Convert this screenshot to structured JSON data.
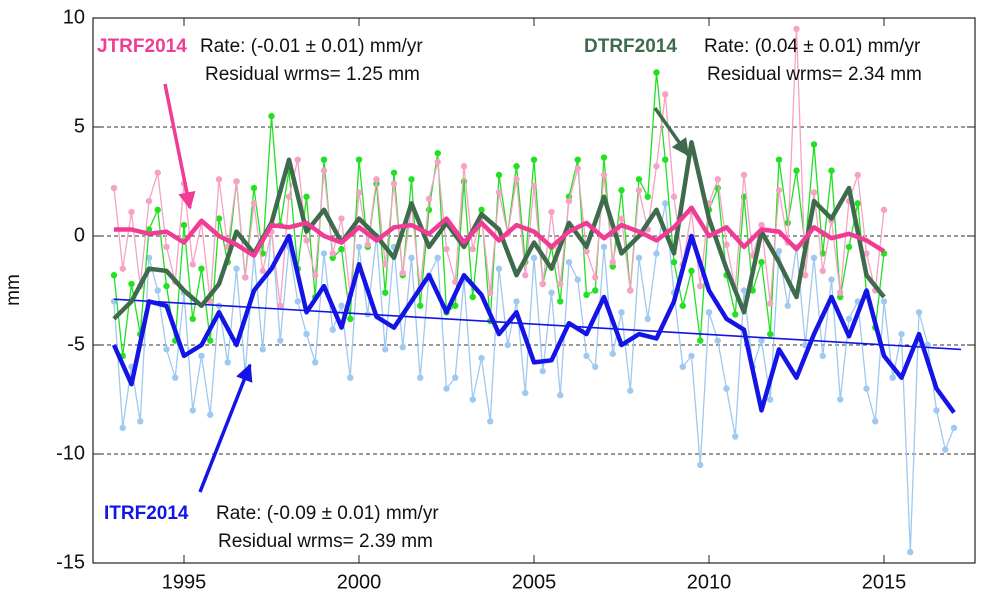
{
  "chart_data": {
    "type": "line",
    "ylabel": "mm",
    "xlim": [
      1992.4,
      2017.6
    ],
    "ylim": [
      -15,
      10
    ],
    "xticks": [
      1995,
      2000,
      2005,
      2010,
      2015
    ],
    "yticks": [
      -15,
      -10,
      -5,
      0,
      5,
      10
    ],
    "grid": true,
    "series": [
      {
        "name": "ITRF2014",
        "color": "#1414e6",
        "points_color": "#9fc9f0",
        "rate": "Rate: (-0.09 ± 0.01) mm/yr",
        "wrms": "Residual wrms= 2.39 mm",
        "x": [
          1993,
          1993.25,
          1993.5,
          1993.75,
          1994,
          1994.25,
          1994.5,
          1994.75,
          1995,
          1995.25,
          1995.5,
          1995.75,
          1996,
          1996.25,
          1996.5,
          1996.75,
          1997,
          1997.25,
          1997.5,
          1997.75,
          1998,
          1998.25,
          1998.5,
          1998.75,
          1999,
          1999.25,
          1999.5,
          1999.75,
          2000,
          2000.25,
          2000.5,
          2000.75,
          2001,
          2001.25,
          2001.5,
          2001.75,
          2002,
          2002.25,
          2002.5,
          2002.75,
          2003,
          2003.25,
          2003.5,
          2003.75,
          2004,
          2004.25,
          2004.5,
          2004.75,
          2005,
          2005.25,
          2005.5,
          2005.75,
          2006,
          2006.25,
          2006.5,
          2006.75,
          2007,
          2007.25,
          2007.5,
          2007.75,
          2008,
          2008.25,
          2008.5,
          2008.75,
          2009,
          2009.25,
          2009.5,
          2009.75,
          2010,
          2010.25,
          2010.5,
          2010.75,
          2011,
          2011.25,
          2011.5,
          2011.75,
          2012,
          2012.25,
          2012.5,
          2012.75,
          2013,
          2013.25,
          2013.5,
          2013.75,
          2014,
          2014.25,
          2014.5,
          2014.75,
          2015,
          2015.25,
          2015.5,
          2015.75,
          2016,
          2016.25,
          2016.5,
          2016.75,
          2017
        ],
        "values": [
          -3.0,
          -8.8,
          -6.0,
          -8.5,
          -1.0,
          -2.5,
          -5.2,
          -6.5,
          -2.6,
          -8.0,
          -5.5,
          -8.2,
          -3.2,
          -5.8,
          -1.5,
          -6.3,
          -0.8,
          -5.2,
          0.5,
          -4.8,
          -0.5,
          -3.0,
          -4.5,
          -5.8,
          -0.8,
          -4.3,
          -3.2,
          -6.5,
          -0.5,
          -3.6,
          0.0,
          -5.2,
          -0.5,
          -5.1,
          -1.0,
          -6.5,
          -1.8,
          -1.0,
          -7.0,
          -6.5,
          -2.0,
          -7.5,
          -5.6,
          -8.5,
          -1.5,
          -5.0,
          -3.0,
          -7.2,
          -1.0,
          -6.2,
          -2.6,
          -7.3,
          -1.2,
          -2.0,
          -5.5,
          -6.0,
          -0.5,
          -5.4,
          -3.5,
          -7.1,
          -1.0,
          -3.8,
          -0.8,
          1.5,
          -2.6,
          -6.0,
          -5.5,
          -10.5,
          -3.5,
          -4.8,
          -7.0,
          -9.2,
          -2.5,
          -6.0,
          -4.8,
          -7.5,
          -0.7,
          -3.2,
          -0.5,
          -5.0,
          -1.0,
          -5.5,
          -2.0,
          -7.5,
          -3.8,
          -3.0,
          -7.0,
          -8.5,
          -3.0,
          -6.5,
          -4.5,
          -14.5,
          -3.5,
          -5.0,
          -8.0,
          -9.8,
          -8.8
        ],
        "smoothed": {
          "x": [
            1993,
            1993.5,
            1994,
            1994.5,
            1995,
            1995.5,
            1996,
            1996.5,
            1997,
            1997.5,
            1998,
            1998.5,
            1999,
            1999.5,
            2000,
            2000.5,
            2001,
            2001.5,
            2002,
            2002.5,
            2003,
            2003.5,
            2004,
            2004.5,
            2005,
            2005.5,
            2006,
            2006.5,
            2007,
            2007.5,
            2008,
            2008.5,
            2009,
            2009.5,
            2010,
            2010.5,
            2011,
            2011.5,
            2012,
            2012.5,
            2013,
            2013.5,
            2014,
            2014.5,
            2015,
            2015.5,
            2016,
            2016.5,
            2017
          ],
          "values": [
            -5,
            -6.8,
            -3,
            -3.2,
            -5.5,
            -5,
            -3.5,
            -5,
            -2.5,
            -1.5,
            0,
            -3.5,
            -2.3,
            -4.2,
            -1.3,
            -3.7,
            -4.2,
            -3,
            -1.8,
            -3.5,
            -1.8,
            -2.7,
            -4.5,
            -3.5,
            -5.8,
            -5.7,
            -4,
            -4.5,
            -2.8,
            -5,
            -4.5,
            -4.7,
            -3,
            0,
            -2.5,
            -3.8,
            -4.3,
            -8,
            -5.2,
            -6.5,
            -4.5,
            -2.8,
            -4.6,
            -2.5,
            -5.5,
            -6.5,
            -4.5,
            -7,
            -8.1
          ]
        },
        "trend": {
          "x": [
            1993,
            2017.2
          ],
          "values": [
            -2.9,
            -5.2
          ]
        }
      },
      {
        "name": "DTRF2014",
        "color": "#3e6b4c",
        "points_color": "#22e022",
        "rate": "Rate: (0.04 ± 0.01) mm/yr",
        "wrms": "Residual wrms= 2.34 mm",
        "x": [
          1993,
          1993.25,
          1993.5,
          1993.75,
          1994,
          1994.25,
          1994.5,
          1994.75,
          1995,
          1995.25,
          1995.5,
          1995.75,
          1996,
          1996.25,
          1996.5,
          1996.75,
          1997,
          1997.25,
          1997.5,
          1997.75,
          1998,
          1998.25,
          1998.5,
          1998.75,
          1999,
          1999.25,
          1999.5,
          1999.75,
          2000,
          2000.25,
          2000.5,
          2000.75,
          2001,
          2001.25,
          2001.5,
          2001.75,
          2002,
          2002.25,
          2002.5,
          2002.75,
          2003,
          2003.25,
          2003.5,
          2003.75,
          2004,
          2004.25,
          2004.5,
          2004.75,
          2005,
          2005.25,
          2005.5,
          2005.75,
          2006,
          2006.25,
          2006.5,
          2006.75,
          2007,
          2007.25,
          2007.5,
          2007.75,
          2008,
          2008.25,
          2008.5,
          2008.75,
          2009,
          2009.25,
          2009.5,
          2009.75,
          2010,
          2010.25,
          2010.5,
          2010.75,
          2011,
          2011.25,
          2011.5,
          2011.75,
          2012,
          2012.25,
          2012.5,
          2012.75,
          2013,
          2013.25,
          2013.5,
          2013.75,
          2014,
          2014.25,
          2014.5,
          2014.75,
          2015
        ],
        "values": [
          -1.8,
          -5.5,
          -2.2,
          -4.5,
          0.3,
          1.2,
          -2.3,
          -4.8,
          0.5,
          -3.8,
          -1.5,
          -4.8,
          0.8,
          -1.2,
          2.5,
          -1.9,
          2.2,
          -0.8,
          5.5,
          0.5,
          3.0,
          -1.5,
          1.8,
          -2.8,
          3.5,
          -1.0,
          -0.6,
          -3.8,
          3.5,
          -0.5,
          2.4,
          -2.6,
          2.9,
          -1.8,
          2.6,
          -3.2,
          1.2,
          3.8,
          -3.5,
          -3.2,
          2.5,
          -2.8,
          1.2,
          -3.9,
          2.8,
          0.1,
          3.2,
          -1.2,
          3.5,
          -2.2,
          -0.5,
          -3.0,
          1.8,
          3.5,
          -2.7,
          -2.5,
          3.6,
          -1.4,
          2.1,
          -2.5,
          2.6,
          1.8,
          7.5,
          3.5,
          -1.2,
          -3.2,
          -1.6,
          -4.8,
          1.2,
          2.2,
          -1.8,
          -3.6,
          1.8,
          -2.5,
          -1.2,
          -4.5,
          3.5,
          0.6,
          3.0,
          -0.5,
          4.2,
          -0.8,
          3.0,
          -2.8,
          -0.5,
          1.5,
          -2.6,
          -4.2,
          -0.8
        ],
        "smoothed": {
          "x": [
            1993,
            1993.5,
            1994,
            1994.5,
            1995,
            1995.5,
            1996,
            1996.5,
            1997,
            1997.5,
            1998,
            1998.5,
            1999,
            1999.5,
            2000,
            2000.5,
            2001,
            2001.5,
            2002,
            2002.5,
            2003,
            2003.5,
            2004,
            2004.5,
            2005,
            2005.5,
            2006,
            2006.5,
            2007,
            2007.5,
            2008,
            2008.5,
            2009,
            2009.5,
            2010,
            2010.5,
            2011,
            2011.5,
            2012,
            2012.5,
            2013,
            2013.5,
            2014,
            2014.5,
            2015
          ],
          "values": [
            -3.8,
            -3.0,
            -1.5,
            -1.6,
            -2.5,
            -3.2,
            -2.2,
            0.2,
            -0.8,
            0.6,
            3.5,
            0.2,
            1.2,
            -0.3,
            0.8,
            0,
            -1,
            1.5,
            -0.5,
            0.6,
            -0.5,
            1,
            0.3,
            -1.8,
            -0.3,
            -1.5,
            0.6,
            -0.5,
            1.8,
            -0.8,
            0,
            1.2,
            -0.8,
            4.3,
            0.8,
            -1.5,
            -3.5,
            0.2,
            -1.2,
            -2.8,
            1.6,
            0.8,
            2.2,
            -1.8,
            -2.8
          ]
        }
      },
      {
        "name": "JTRF2014",
        "color": "#f03c95",
        "points_color": "#f7a1c4",
        "rate": "Rate: (-0.01 ± 0.01) mm/yr",
        "wrms": "Residual wrms= 1.25 mm",
        "x": [
          1993,
          1993.25,
          1993.5,
          1993.75,
          1994,
          1994.25,
          1994.5,
          1994.75,
          1995,
          1995.25,
          1995.5,
          1995.75,
          1996,
          1996.25,
          1996.5,
          1996.75,
          1997,
          1997.25,
          1997.5,
          1997.75,
          1998,
          1998.25,
          1998.5,
          1998.75,
          1999,
          1999.25,
          1999.5,
          1999.75,
          2000,
          2000.25,
          2000.5,
          2000.75,
          2001,
          2001.25,
          2001.5,
          2001.75,
          2002,
          2002.25,
          2002.5,
          2002.75,
          2003,
          2003.25,
          2003.5,
          2003.75,
          2004,
          2004.25,
          2004.5,
          2004.75,
          2005,
          2005.25,
          2005.5,
          2005.75,
          2006,
          2006.25,
          2006.5,
          2006.75,
          2007,
          2007.25,
          2007.5,
          2007.75,
          2008,
          2008.25,
          2008.5,
          2008.75,
          2009,
          2009.25,
          2009.5,
          2009.75,
          2010,
          2010.25,
          2010.5,
          2010.75,
          2011,
          2011.25,
          2011.5,
          2011.75,
          2012,
          2012.25,
          2012.5,
          2012.75,
          2013,
          2013.25,
          2013.5,
          2013.75,
          2014,
          2014.25,
          2014.5,
          2014.75,
          2015
        ],
        "values": [
          2.2,
          -1.5,
          1.1,
          -2.3,
          1.6,
          2.9,
          -0.5,
          -2.1,
          2.4,
          -1.3,
          0.6,
          -3.0,
          2.6,
          -0.5,
          2.5,
          -1.9,
          1.5,
          -1.6,
          0.2,
          -3.2,
          1.8,
          3.5,
          -0.2,
          -1.8,
          3.0,
          -0.8,
          0.8,
          -2.7,
          2.0,
          -0.4,
          2.6,
          -1.3,
          2.4,
          -1.7,
          1.4,
          -2.4,
          1.7,
          3.4,
          -0.6,
          -2.1,
          3.2,
          -0.6,
          0.9,
          -2.6,
          2.0,
          0.1,
          2.6,
          -1.8,
          2.3,
          -2.2,
          1.1,
          -2.2,
          1.6,
          3.1,
          -0.7,
          -1.9,
          2.8,
          -1.2,
          0.8,
          -2.5,
          2.1,
          0.3,
          3.2,
          6.5,
          1.8,
          -1.3,
          1.1,
          -2.3,
          1.5,
          2.6,
          -0.4,
          -2.4,
          2.8,
          -0.9,
          0.5,
          -3.1,
          2.1,
          -0.3,
          9.5,
          -1.8,
          2.0,
          -1.6,
          0.7,
          -2.6,
          1.6,
          2.8,
          -0.8,
          -2.5,
          1.2
        ],
        "smoothed": {
          "x": [
            1993,
            1993.5,
            1994,
            1994.5,
            1995,
            1995.5,
            1996,
            1996.5,
            1997,
            1997.5,
            1998,
            1998.5,
            1999,
            1999.5,
            2000,
            2000.5,
            2001,
            2001.5,
            2002,
            2002.5,
            2003,
            2003.5,
            2004,
            2004.5,
            2005,
            2005.5,
            2006,
            2006.5,
            2007,
            2007.5,
            2008,
            2008.5,
            2009,
            2009.5,
            2010,
            2010.5,
            2011,
            2011.5,
            2012,
            2012.5,
            2013,
            2013.5,
            2014,
            2014.5,
            2015
          ],
          "values": [
            0.3,
            0.3,
            0.1,
            0.2,
            -0.3,
            0.7,
            0,
            -0.4,
            -0.9,
            0.5,
            0.4,
            0.6,
            0,
            -0.3,
            0.4,
            -0.2,
            0.4,
            0.5,
            0.1,
            0.8,
            -0.3,
            0.6,
            -0.2,
            0.5,
            0.2,
            -0.5,
            0.2,
            0.6,
            -0.1,
            0.5,
            0.2,
            -0.2,
            0.4,
            1.3,
            0,
            0.4,
            -0.5,
            0.3,
            0.2,
            -0.6,
            0.4,
            -0.1,
            0.1,
            -0.2,
            -0.7
          ]
        }
      }
    ]
  }
}
